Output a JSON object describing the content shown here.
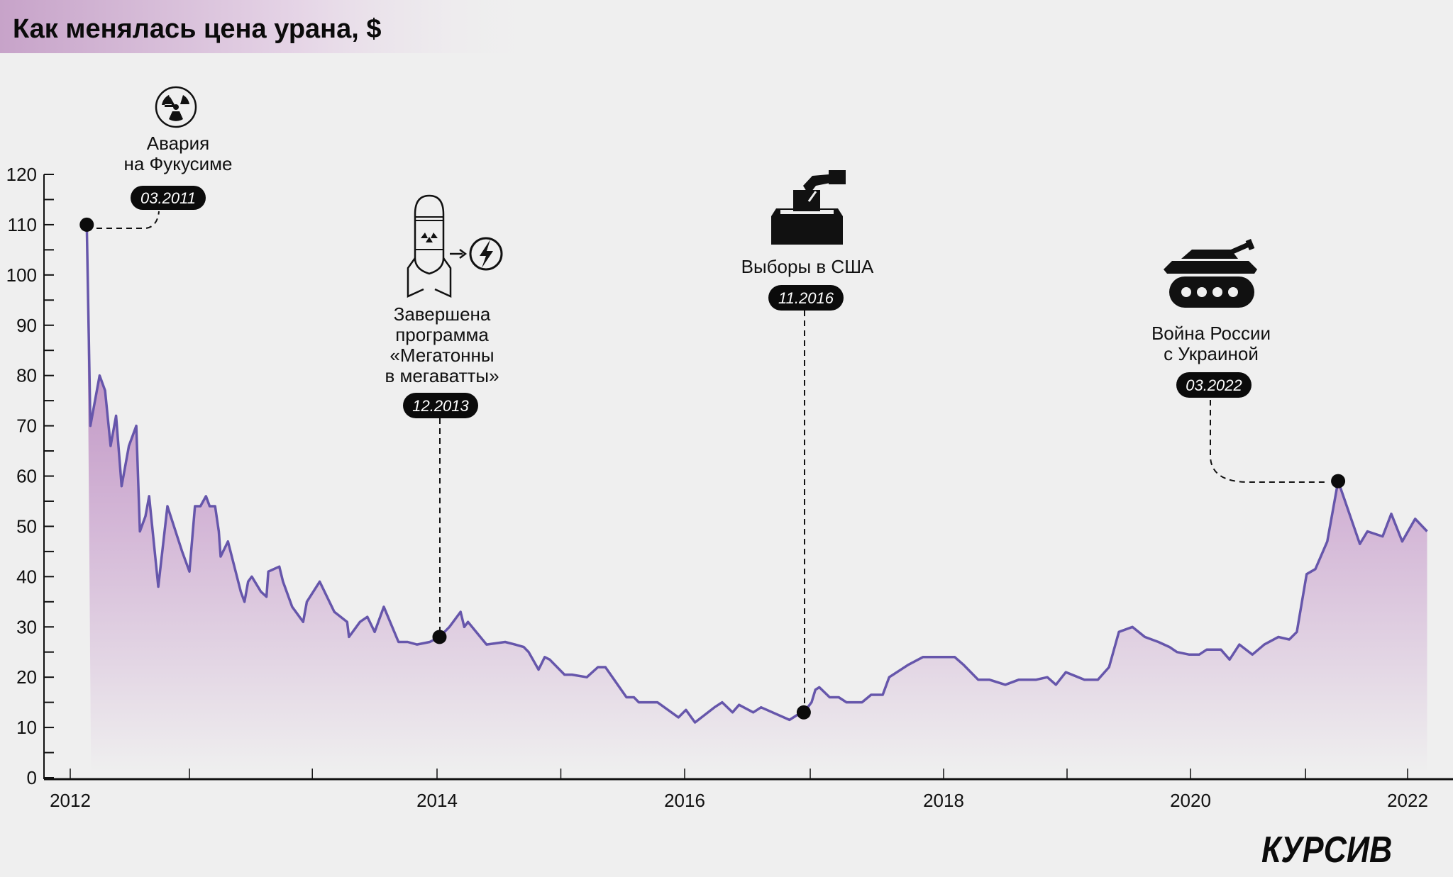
{
  "title": "Как менялась цена урана, $",
  "logo": "КУРСИВ",
  "colors": {
    "line": "#6656ab",
    "fill_top": "#b98abd",
    "background": "#efefef",
    "pill": "#0b0b0b"
  },
  "events": [
    {
      "icon": "radiation-icon",
      "lines": [
        "Авария",
        "на Фукусиме"
      ],
      "date": "03.2011",
      "point": [
        2012.09,
        110
      ]
    },
    {
      "icon": "nuclear-warhead-to-energy-icon",
      "lines": [
        "Завершена",
        "программа",
        "«Мегатонны",
        "в мегаватты»"
      ],
      "date": "12.2013",
      "point": [
        2014.02,
        28
      ]
    },
    {
      "icon": "ballot-box-icon",
      "lines": [
        "Выборы в США"
      ],
      "date": "11.2016",
      "point": [
        2016.92,
        13
      ]
    },
    {
      "icon": "tank-icon",
      "lines": [
        "Война России",
        "с Украиной"
      ],
      "date": "03.2022",
      "point": [
        2021.36,
        59
      ]
    }
  ],
  "chart_data": {
    "type": "area",
    "title": "Как менялась цена урана, $",
    "xlabel": "",
    "ylabel": "",
    "ylim": [
      0,
      120
    ],
    "yticks": [
      0,
      10,
      20,
      30,
      40,
      50,
      60,
      70,
      80,
      90,
      100,
      110,
      120
    ],
    "xtick_labels": [
      "2012",
      "2014",
      "2016",
      "2018",
      "2020",
      "2022"
    ],
    "xtick_positions": [
      2012,
      2012.65,
      2013.32,
      2014,
      2015,
      2016,
      2016.97,
      2018,
      2019,
      2020,
      2021.06,
      2022
    ],
    "grid": false,
    "series": [
      {
        "name": "Цена урана, $",
        "points": [
          [
            2012.09,
            110
          ],
          [
            2012.11,
            70
          ],
          [
            2012.16,
            80
          ],
          [
            2012.19,
            77
          ],
          [
            2012.22,
            66
          ],
          [
            2012.25,
            72
          ],
          [
            2012.28,
            58
          ],
          [
            2012.32,
            66
          ],
          [
            2012.36,
            70
          ],
          [
            2012.38,
            49
          ],
          [
            2012.41,
            52
          ],
          [
            2012.43,
            56
          ],
          [
            2012.48,
            38
          ],
          [
            2012.53,
            54
          ],
          [
            2012.61,
            45
          ],
          [
            2012.65,
            41
          ],
          [
            2012.68,
            54
          ],
          [
            2012.71,
            54
          ],
          [
            2012.74,
            56
          ],
          [
            2012.76,
            54
          ],
          [
            2012.79,
            54
          ],
          [
            2012.81,
            49
          ],
          [
            2012.82,
            44
          ],
          [
            2012.86,
            47
          ],
          [
            2012.93,
            37
          ],
          [
            2012.95,
            35
          ],
          [
            2012.97,
            39
          ],
          [
            2012.99,
            40
          ],
          [
            2013.04,
            37
          ],
          [
            2013.07,
            36
          ],
          [
            2013.08,
            41
          ],
          [
            2013.14,
            42
          ],
          [
            2013.16,
            39
          ],
          [
            2013.21,
            34
          ],
          [
            2013.27,
            31
          ],
          [
            2013.29,
            35
          ],
          [
            2013.36,
            39
          ],
          [
            2013.44,
            33
          ],
          [
            2013.51,
            31
          ],
          [
            2013.52,
            28
          ],
          [
            2013.58,
            31
          ],
          [
            2013.62,
            32
          ],
          [
            2013.66,
            29
          ],
          [
            2013.71,
            34
          ],
          [
            2013.79,
            27
          ],
          [
            2013.84,
            27
          ],
          [
            2013.89,
            26.5
          ],
          [
            2013.96,
            27
          ],
          [
            2014.02,
            28
          ],
          [
            2014.1,
            30
          ],
          [
            2014.13,
            31
          ],
          [
            2014.19,
            33
          ],
          [
            2014.22,
            30
          ],
          [
            2014.25,
            31
          ],
          [
            2014.4,
            26.5
          ],
          [
            2014.55,
            27
          ],
          [
            2014.63,
            26.5
          ],
          [
            2014.7,
            26
          ],
          [
            2014.74,
            25
          ],
          [
            2014.82,
            21.5
          ],
          [
            2014.87,
            24
          ],
          [
            2014.91,
            23.5
          ],
          [
            2015.03,
            20.5
          ],
          [
            2015.09,
            20.5
          ],
          [
            2015.21,
            20
          ],
          [
            2015.3,
            22
          ],
          [
            2015.36,
            22
          ],
          [
            2015.53,
            16
          ],
          [
            2015.59,
            16
          ],
          [
            2015.63,
            15
          ],
          [
            2015.78,
            15
          ],
          [
            2015.95,
            12
          ],
          [
            2016.01,
            13.5
          ],
          [
            2016.08,
            11
          ],
          [
            2016.23,
            14
          ],
          [
            2016.29,
            15
          ],
          [
            2016.37,
            13
          ],
          [
            2016.42,
            14.5
          ],
          [
            2016.53,
            13
          ],
          [
            2016.59,
            14
          ],
          [
            2016.81,
            11.5
          ],
          [
            2016.87,
            12.5
          ],
          [
            2016.92,
            13
          ],
          [
            2016.98,
            15
          ],
          [
            2017.01,
            17.5
          ],
          [
            2017.04,
            18
          ],
          [
            2017.12,
            16
          ],
          [
            2017.19,
            16
          ],
          [
            2017.25,
            15
          ],
          [
            2017.37,
            15
          ],
          [
            2017.44,
            16.5
          ],
          [
            2017.53,
            16.5
          ],
          [
            2017.58,
            20
          ],
          [
            2017.61,
            20.5
          ],
          [
            2017.73,
            22.5
          ],
          [
            2017.84,
            24
          ],
          [
            2017.94,
            24
          ],
          [
            2018.09,
            24
          ],
          [
            2018.16,
            22.5
          ],
          [
            2018.28,
            19.5
          ],
          [
            2018.37,
            19.5
          ],
          [
            2018.5,
            18.5
          ],
          [
            2018.61,
            19.5
          ],
          [
            2018.75,
            19.5
          ],
          [
            2018.84,
            20
          ],
          [
            2018.91,
            18.5
          ],
          [
            2018.99,
            21
          ],
          [
            2019.14,
            19.5
          ],
          [
            2019.25,
            19.5
          ],
          [
            2019.34,
            22
          ],
          [
            2019.42,
            29
          ],
          [
            2019.53,
            30
          ],
          [
            2019.63,
            28
          ],
          [
            2019.74,
            27
          ],
          [
            2019.83,
            26
          ],
          [
            2019.89,
            25
          ],
          [
            2019.99,
            24.5
          ],
          [
            2020.08,
            24.5
          ],
          [
            2020.15,
            25.5
          ],
          [
            2020.28,
            25.5
          ],
          [
            2020.36,
            23.5
          ],
          [
            2020.45,
            26.5
          ],
          [
            2020.57,
            24.5
          ],
          [
            2020.68,
            26.5
          ],
          [
            2020.81,
            28
          ],
          [
            2020.91,
            27.5
          ],
          [
            2020.98,
            29
          ],
          [
            2021.07,
            40.5
          ],
          [
            2021.15,
            41.5
          ],
          [
            2021.26,
            47
          ],
          [
            2021.36,
            59
          ],
          [
            2021.56,
            46.5
          ],
          [
            2021.63,
            49
          ],
          [
            2021.77,
            48
          ],
          [
            2021.85,
            52.5
          ],
          [
            2021.95,
            47
          ],
          [
            2022.07,
            51.5
          ],
          [
            2022.18,
            49
          ]
        ]
      }
    ]
  }
}
